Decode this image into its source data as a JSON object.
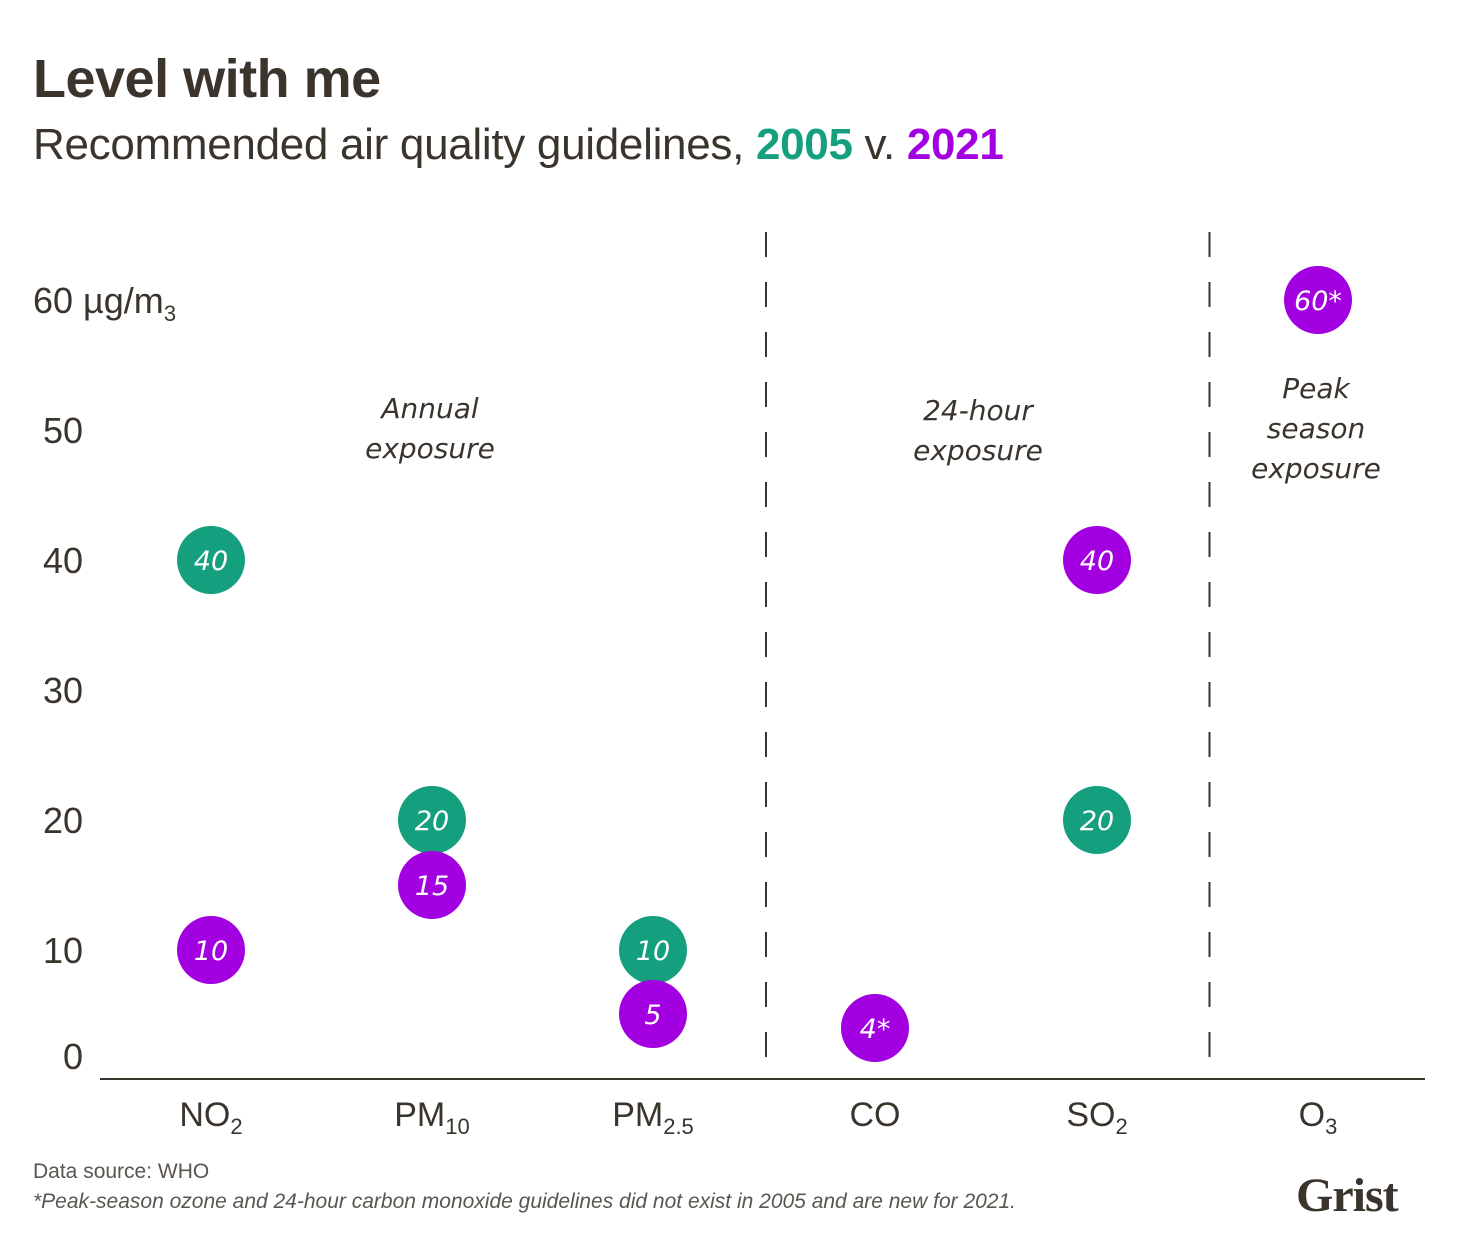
{
  "header": {
    "title": "Level with me",
    "subtitle_prefix": "Recommended air quality guidelines, ",
    "subtitle_year_a": "2005",
    "subtitle_mid": " v. ",
    "subtitle_year_b": "2021"
  },
  "colors": {
    "series_2005": "#14a07e",
    "series_2021": "#a200e0",
    "text": "#3a342d"
  },
  "footer": {
    "source": "Data source: WHO",
    "note": "*Peak-season ozone and 24-hour carbon monoxide guidelines did not exist in 2005 and are new for 2021.",
    "logo": "Grist"
  },
  "chart_data": {
    "type": "scatter",
    "title": "Level with me",
    "subtitle": "Recommended air quality guidelines, 2005 v. 2021",
    "ylabel": "µg/m3",
    "ylim": [
      0,
      60
    ],
    "yticks": [
      0,
      10,
      20,
      30,
      40,
      50,
      60
    ],
    "ytick_labels": [
      "0",
      "10",
      "20",
      "30",
      "40",
      "50",
      "60 µg/m₃"
    ],
    "grid": false,
    "categories": [
      {
        "base": "NO",
        "sub": "2"
      },
      {
        "base": "PM",
        "sub": "10"
      },
      {
        "base": "PM",
        "sub": "2.5"
      },
      {
        "base": "CO",
        "sub": ""
      },
      {
        "base": "SO",
        "sub": "2"
      },
      {
        "base": "O",
        "sub": "3"
      }
    ],
    "series": [
      {
        "name": "2005",
        "color": "#14a07e",
        "values": [
          40,
          20,
          10,
          null,
          20,
          null
        ],
        "labels": [
          "40",
          "20",
          "10",
          null,
          "20",
          null
        ]
      },
      {
        "name": "2021",
        "color": "#a200e0",
        "values": [
          10,
          15,
          5,
          4,
          40,
          60
        ],
        "labels": [
          "10",
          "15",
          "5",
          "4*",
          "40",
          "60*"
        ]
      }
    ],
    "regions": [
      {
        "label": [
          "Annual",
          "exposure"
        ],
        "categories": [
          0,
          1,
          2
        ],
        "label_y": 50
      },
      {
        "label": [
          "24-hour",
          "exposure"
        ],
        "categories": [
          3,
          4
        ],
        "label_y": 50
      },
      {
        "label": [
          "Peak",
          "season",
          "exposure"
        ],
        "categories": [
          5
        ],
        "label_y": 51.5
      }
    ],
    "dividers_after_category": [
      2,
      4
    ]
  }
}
